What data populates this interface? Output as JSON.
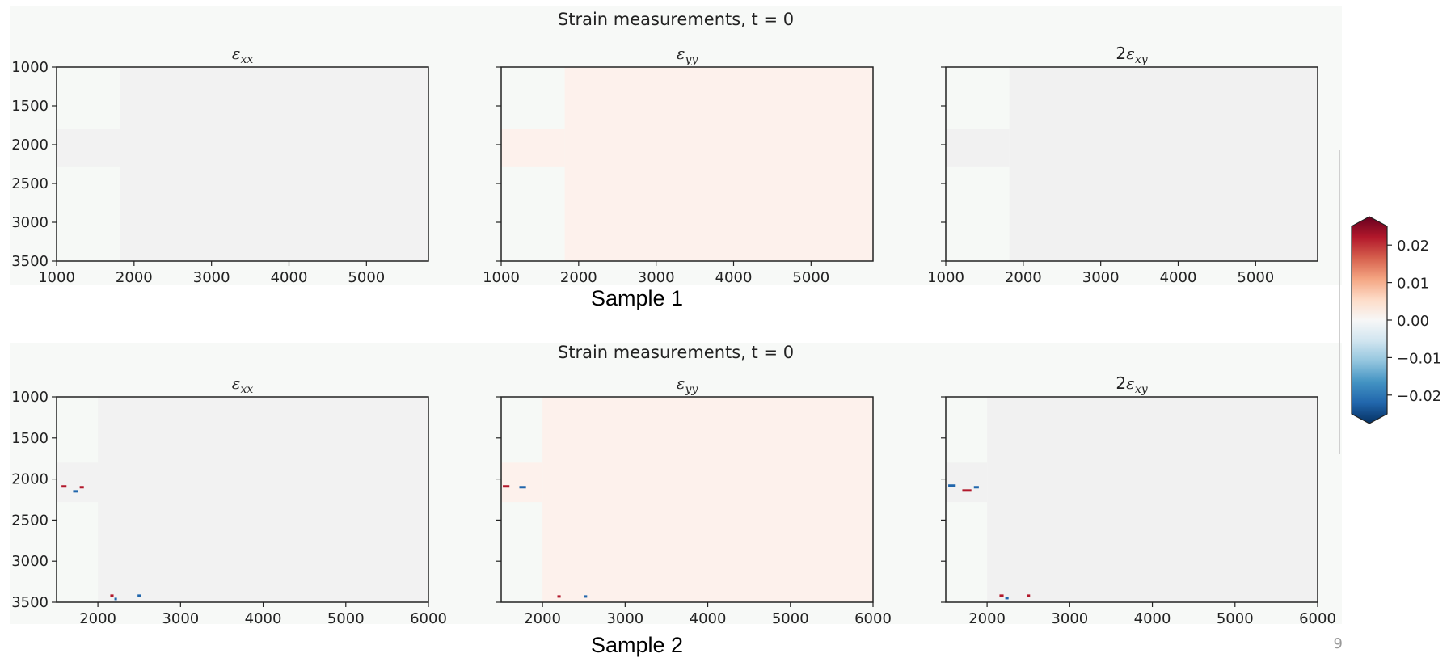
{
  "slide": {
    "sample1_label": "Sample 1",
    "sample2_label": "Sample 2",
    "page_number": "9"
  },
  "colors": {
    "block_background": "#f7f9f7",
    "exx_field": "#f2f2f2",
    "eyy_field": "#fdf1ec",
    "exy_field": "#f1f1f1",
    "clamp_region": "#f6f9f6",
    "colormap": "RdBu_r"
  },
  "chart_data": [
    {
      "type": "heatmap",
      "title": "Strain measurements, t = 0",
      "panels": [
        {
          "title_base": "ε",
          "title_sub": "xx",
          "title_prefix": ""
        },
        {
          "title_base": "ε",
          "title_sub": "yy",
          "title_prefix": ""
        },
        {
          "title_base": "ε",
          "title_sub": "xy",
          "title_prefix": "2"
        }
      ],
      "xlim": [
        1000,
        5800
      ],
      "ylim": [
        3500,
        1000
      ],
      "xticks": [
        1000,
        2000,
        3000,
        4000,
        5000
      ],
      "yticks": [
        1000,
        1500,
        2000,
        2500,
        3000,
        3500
      ],
      "field_x_start": 1820,
      "grip_y": [
        1800,
        2280
      ],
      "field_values": {
        "exx": 0.0,
        "eyy": 0.002,
        "exy": 0.0
      },
      "outliers": []
    },
    {
      "type": "heatmap",
      "title": "Strain measurements, t = 0",
      "panels": [
        {
          "title_base": "ε",
          "title_sub": "xx",
          "title_prefix": ""
        },
        {
          "title_base": "ε",
          "title_sub": "yy",
          "title_prefix": ""
        },
        {
          "title_base": "ε",
          "title_sub": "xy",
          "title_prefix": "2"
        }
      ],
      "xlim": [
        1500,
        6000
      ],
      "ylim": [
        3500,
        1000
      ],
      "xticks": [
        2000,
        3000,
        4000,
        5000,
        6000
      ],
      "yticks": [
        1000,
        1500,
        2000,
        2500,
        3000,
        3500
      ],
      "field_x_start": 2000,
      "grip_y": [
        1800,
        2280
      ],
      "field_values": {
        "exx": 0.0,
        "eyy": 0.002,
        "exy": 0.0
      },
      "outliers": [
        {
          "panel": 0,
          "x": 1560,
          "y": 2090,
          "w": 60,
          "v": 0.02
        },
        {
          "panel": 0,
          "x": 1700,
          "y": 2150,
          "w": 60,
          "v": -0.02
        },
        {
          "panel": 0,
          "x": 1780,
          "y": 2100,
          "w": 50,
          "v": 0.02
        },
        {
          "panel": 0,
          "x": 2150,
          "y": 3420,
          "w": 40,
          "v": 0.02
        },
        {
          "panel": 0,
          "x": 2200,
          "y": 3460,
          "w": 30,
          "v": -0.02
        },
        {
          "panel": 0,
          "x": 2480,
          "y": 3420,
          "w": 40,
          "v": -0.02
        },
        {
          "panel": 1,
          "x": 1520,
          "y": 2090,
          "w": 80,
          "v": 0.02
        },
        {
          "panel": 1,
          "x": 1720,
          "y": 2100,
          "w": 80,
          "v": -0.02
        },
        {
          "panel": 1,
          "x": 2180,
          "y": 3430,
          "w": 40,
          "v": 0.02
        },
        {
          "panel": 1,
          "x": 2500,
          "y": 3430,
          "w": 40,
          "v": -0.02
        },
        {
          "panel": 2,
          "x": 1530,
          "y": 2080,
          "w": 90,
          "v": -0.02
        },
        {
          "panel": 2,
          "x": 1700,
          "y": 2140,
          "w": 110,
          "v": 0.02
        },
        {
          "panel": 2,
          "x": 1840,
          "y": 2100,
          "w": 60,
          "v": -0.02
        },
        {
          "panel": 2,
          "x": 2150,
          "y": 3420,
          "w": 50,
          "v": 0.02
        },
        {
          "panel": 2,
          "x": 2220,
          "y": 3450,
          "w": 40,
          "v": -0.02
        },
        {
          "panel": 2,
          "x": 2480,
          "y": 3420,
          "w": 40,
          "v": 0.02
        }
      ]
    },
    {
      "type": "colorbar",
      "vmin": -0.025,
      "vmax": 0.025,
      "ticks": [
        0.02,
        0.01,
        0.0,
        -0.01,
        -0.02
      ],
      "tick_labels": [
        "0.02",
        "0.01",
        "0.00",
        "−0.01",
        "−0.02"
      ],
      "extend": "both",
      "stops": [
        "#67001f",
        "#b2182b",
        "#d6604d",
        "#f4a582",
        "#fddbc7",
        "#f7f7f7",
        "#d1e5f0",
        "#92c5de",
        "#4393c3",
        "#2166ac",
        "#053061"
      ]
    }
  ]
}
